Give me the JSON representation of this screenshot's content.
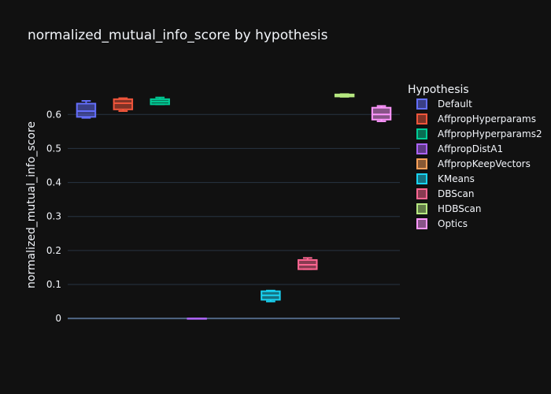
{
  "chart_data": {
    "type": "box",
    "title": "normalized_mutual_info_score by hypothesis",
    "xlabel": "",
    "ylabel": "normalized_mutual_info_score",
    "ylim": [
      -0.002,
      0.705
    ],
    "yticks": [
      0,
      0.1,
      0.2,
      0.3,
      0.4,
      0.5,
      0.6
    ],
    "grid": true,
    "legend": {
      "title": "Hypothesis",
      "placement": "right"
    },
    "series": [
      {
        "name": "Default",
        "color": "#636efa",
        "min": 0.59,
        "q1": 0.593,
        "median": 0.61,
        "q3": 0.632,
        "max": 0.64
      },
      {
        "name": "AffpropHyperparams",
        "color": "#ef553b",
        "min": 0.61,
        "q1": 0.615,
        "median": 0.633,
        "q3": 0.645,
        "max": 0.648
      },
      {
        "name": "AffpropHyperparams2",
        "color": "#00cc96",
        "min": 0.63,
        "q1": 0.63,
        "median": 0.638,
        "q3": 0.645,
        "max": 0.65
      },
      {
        "name": "AffpropDistA1",
        "color": "#ab63fa",
        "min": 0,
        "q1": 0,
        "median": 0,
        "q3": 0,
        "max": 0
      },
      {
        "name": "AffpropKeepVectors",
        "color": "#ffa15a",
        "min": null,
        "q1": null,
        "median": null,
        "q3": null,
        "max": null
      },
      {
        "name": "KMeans",
        "color": "#19d3f3",
        "min": 0.05,
        "q1": 0.055,
        "median": 0.068,
        "q3": 0.08,
        "max": 0.082
      },
      {
        "name": "DBScan",
        "color": "#ff6692",
        "min": 0.145,
        "q1": 0.145,
        "median": 0.158,
        "q3": 0.172,
        "max": 0.178
      },
      {
        "name": "HDBScan",
        "color": "#b6e880",
        "min": 0.652,
        "q1": 0.653,
        "median": 0.656,
        "q3": 0.659,
        "max": 0.66
      },
      {
        "name": "Optics",
        "color": "#ff97ff",
        "min": 0.58,
        "q1": 0.585,
        "median": 0.6,
        "q3": 0.62,
        "max": 0.625
      }
    ]
  }
}
